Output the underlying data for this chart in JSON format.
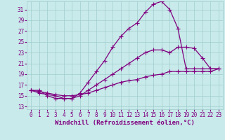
{
  "background_color": "#c8eaea",
  "line_color": "#800080",
  "grid_color": "#a0cccc",
  "xlabel": "Windchill (Refroidissement éolien,°C)",
  "xlabel_fontsize": 6.5,
  "tick_fontsize": 5.5,
  "xlim": [
    -0.5,
    23.5
  ],
  "ylim": [
    12.5,
    32.5
  ],
  "yticks": [
    13,
    15,
    17,
    19,
    21,
    23,
    25,
    27,
    29,
    31
  ],
  "xticks": [
    0,
    1,
    2,
    3,
    4,
    5,
    6,
    7,
    8,
    9,
    10,
    11,
    12,
    13,
    14,
    15,
    16,
    17,
    18,
    19,
    20,
    21,
    22,
    23
  ],
  "line1_x": [
    0,
    1,
    2,
    3,
    4,
    5,
    6,
    7,
    8,
    9,
    10,
    11,
    12,
    13,
    14,
    15,
    16,
    17,
    18,
    19,
    20,
    21,
    22,
    23
  ],
  "line1_y": [
    16,
    16,
    15,
    14.5,
    14.5,
    14.5,
    15.5,
    17.5,
    19.5,
    21.5,
    24,
    26,
    27.5,
    28.5,
    30.5,
    32,
    32.5,
    31,
    27.5,
    20,
    20,
    20,
    20,
    20
  ],
  "line2_x": [
    0,
    1,
    2,
    3,
    4,
    5,
    6,
    7,
    8,
    9,
    10,
    11,
    12,
    13,
    14,
    15,
    16,
    17,
    18,
    19,
    20,
    21,
    22,
    23
  ],
  "line2_y": [
    16,
    15.5,
    15.2,
    15,
    14.5,
    14.5,
    15,
    16,
    17,
    18,
    19,
    20,
    21,
    22,
    23,
    23.5,
    23.5,
    23,
    24,
    24,
    23.8,
    22,
    20,
    20
  ],
  "line3_x": [
    0,
    1,
    2,
    3,
    4,
    5,
    6,
    7,
    8,
    9,
    10,
    11,
    12,
    13,
    14,
    15,
    16,
    17,
    18,
    19,
    20,
    21,
    22,
    23
  ],
  "line3_y": [
    16,
    15.8,
    15.5,
    15.2,
    15,
    15,
    15.2,
    15.5,
    16,
    16.5,
    17,
    17.5,
    17.8,
    18,
    18.5,
    18.8,
    19,
    19.5,
    19.5,
    19.5,
    19.5,
    19.5,
    19.5,
    20
  ]
}
